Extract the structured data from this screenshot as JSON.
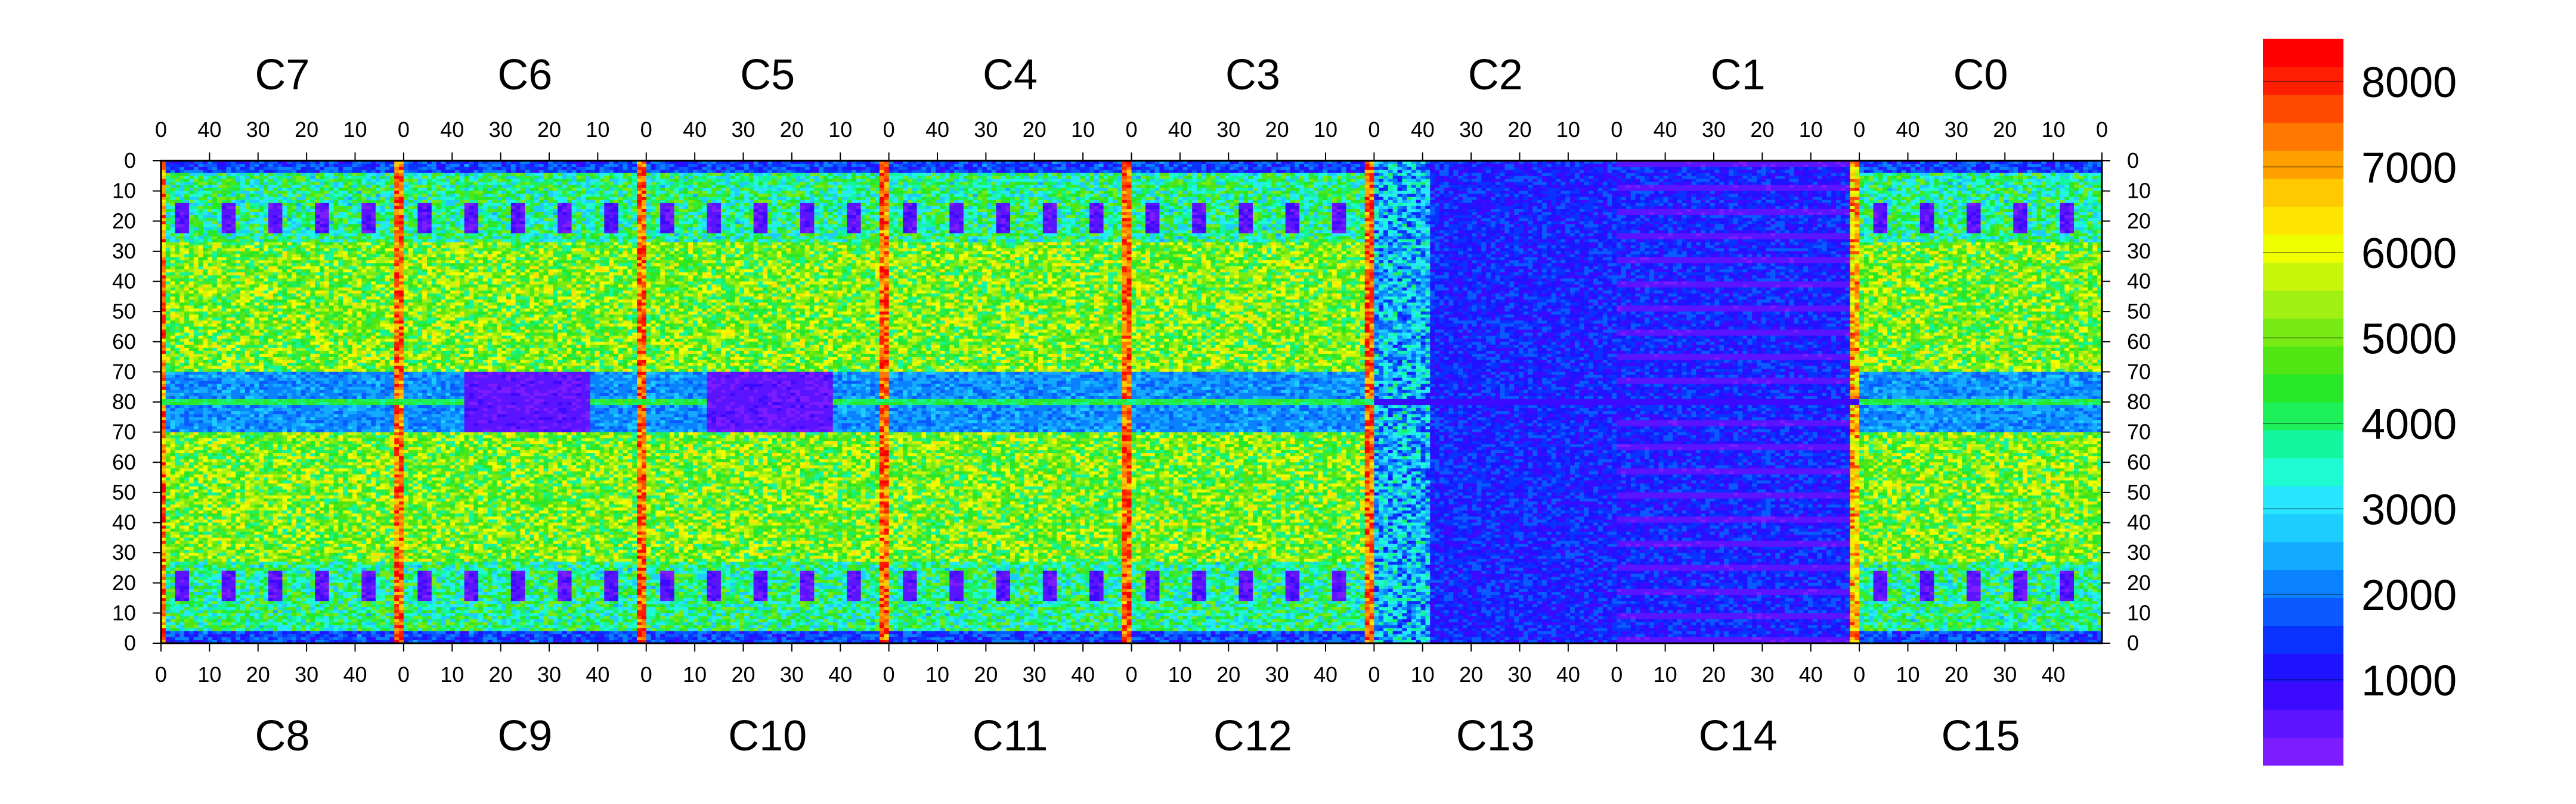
{
  "chart_data": {
    "type": "heatmap",
    "title": "",
    "xlabel": "",
    "ylabel": "",
    "chips_top": [
      "C7",
      "C6",
      "C5",
      "C4",
      "C3",
      "C2",
      "C1",
      "C0"
    ],
    "chips_bottom": [
      "C8",
      "C9",
      "C10",
      "C11",
      "C12",
      "C13",
      "C14",
      "C15"
    ],
    "x_ticks_top": [
      "40",
      "30",
      "20",
      "10",
      "0"
    ],
    "x_ticks_bottom": [
      "0",
      "10",
      "20",
      "30",
      "40"
    ],
    "y_ticks": [
      "0",
      "10",
      "20",
      "30",
      "40",
      "50",
      "60",
      "70",
      "80",
      "70",
      "60",
      "50",
      "40",
      "30",
      "20",
      "10",
      "0"
    ],
    "columns_per_chip": 52,
    "rows_per_half": 80,
    "colorbar": {
      "ticks": [
        "1000",
        "2000",
        "3000",
        "4000",
        "5000",
        "6000",
        "7000",
        "8000"
      ],
      "tick_values": [
        1000,
        2000,
        3000,
        4000,
        5000,
        6000,
        7000,
        8000
      ],
      "range": [
        0,
        8500
      ],
      "colors": [
        "#7d1dff",
        "#5a14ff",
        "#3c0aff",
        "#1e14ff",
        "#0a32ff",
        "#0a5aff",
        "#0a82ff",
        "#14aaff",
        "#1ecdff",
        "#28e6ff",
        "#1efad2",
        "#14f5a0",
        "#1ef05a",
        "#28e628",
        "#50e614",
        "#78eb14",
        "#a0f014",
        "#c8f50a",
        "#f0ff00",
        "#ffe600",
        "#ffc800",
        "#ffa000",
        "#ff7800",
        "#ff4b00",
        "#ff1e00",
        "#ff0000"
      ]
    },
    "features": {
      "bright_columns_chip_index": [
        0,
        1,
        2,
        3,
        4,
        5,
        6
      ],
      "center_bright_row": 80,
      "low_response_chips": [
        "C2",
        "C1",
        "C13",
        "C14"
      ]
    }
  }
}
